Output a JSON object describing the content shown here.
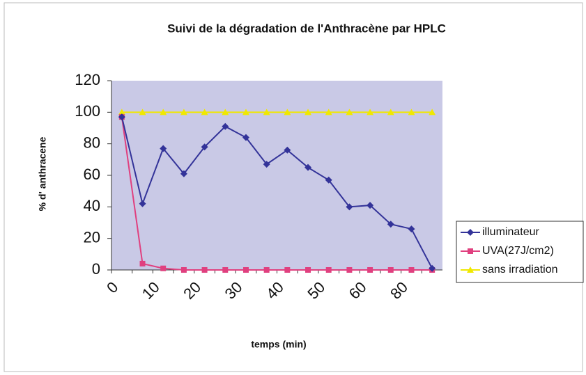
{
  "chart_data": {
    "type": "line",
    "title": "Suivi de la dégradation de l'Anthracène par HPLC",
    "x_label": "temps (min)",
    "y_label": "% d' anthracene",
    "categories": [
      "0",
      null,
      "10",
      null,
      "20",
      null,
      "30",
      null,
      "40",
      null,
      "50",
      null,
      "60",
      null,
      "80",
      null
    ],
    "series": [
      {
        "name": "illuminateur",
        "color": "#333399",
        "marker": "diamond",
        "values": [
          97,
          42,
          77,
          61,
          78,
          91,
          84,
          67,
          76,
          65,
          57,
          40,
          41,
          29,
          26,
          1
        ]
      },
      {
        "name": "UVA(27J/cm2)",
        "color": "#e0407f",
        "marker": "square",
        "values": [
          97,
          4,
          1,
          0,
          0,
          0,
          0,
          0,
          0,
          0,
          0,
          0,
          0,
          0,
          0,
          0
        ]
      },
      {
        "name": "sans irradiation",
        "color": "#f0e800",
        "marker": "triangle",
        "values": [
          100,
          100,
          100,
          100,
          100,
          100,
          100,
          100,
          100,
          100,
          100,
          100,
          100,
          100,
          100,
          100
        ]
      }
    ],
    "ylim": [
      0,
      120
    ],
    "yticks": [
      0,
      20,
      40,
      60,
      80,
      100,
      120
    ],
    "legend": "right"
  }
}
